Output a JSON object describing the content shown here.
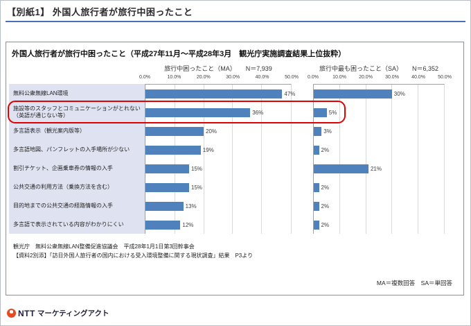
{
  "page": {
    "header_title": "【別紙1】 外国人旅行者が旅行中困ったこと"
  },
  "panel": {
    "title": "外国人旅行者が旅行中困ったこと（平成27年11月～平成28年3月　観光庁実施調査結果上位抜粋）",
    "source_line1": "観光庁　無料公衆無線LAN整備促進協議会　平成28年1月1日第3回幹事会",
    "source_line2": "【資料2別添】「訪日外国人旅行者の国内における受入環境整備に関する現状調査」結果　P3より",
    "legend_note": "MA＝複数回答　SA＝単回答"
  },
  "chart_data": {
    "type": "bar",
    "orientation": "horizontal",
    "categories": [
      "無料公衆無線LAN環境",
      "施設等のスタッフとコミュニケーションがとれない\n（英語が通じない等）",
      "多言語表示（観光案内版等）",
      "多言語地図、パンフレットの入手場所が少ない",
      "割引チケット、企画乗車券の情報の入手",
      "公共交通の利用方法（乗換方法を含む）",
      "目的地までの公共交通の経路情報の入手",
      "多言語で表示されている内容がわかりにくい"
    ],
    "series": [
      {
        "name": "旅行中困ったこと（MA）",
        "n_label": "N＝7,939",
        "values": [
          47,
          36,
          20,
          19,
          15,
          15,
          13,
          12
        ]
      },
      {
        "name": "旅行中最も困ったこと（SA）",
        "n_label": "N＝6,352",
        "values": [
          30,
          5,
          3,
          2,
          21,
          2,
          2,
          2
        ]
      }
    ],
    "x_ticks": [
      "0.0%",
      "10.0%",
      "20.0%",
      "30.0%",
      "40.0%",
      "50.0%"
    ],
    "xlim": [
      0,
      50
    ],
    "grid": true,
    "bar_color": "#4f81bd",
    "label_bg_color": "#dfe3f1",
    "highlight_row_index": 1,
    "highlight_color": "#e00000"
  },
  "footer": {
    "logo_ntt": "NTT",
    "logo_act": "マーケティングアクト"
  }
}
